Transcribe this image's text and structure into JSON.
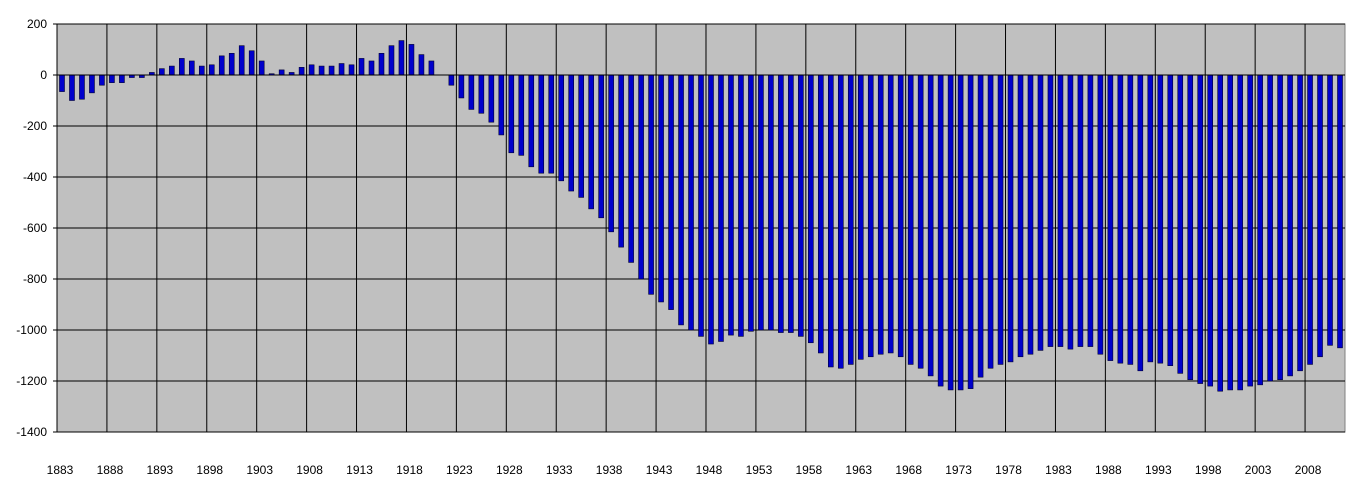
{
  "chart_data": {
    "type": "bar",
    "title": "",
    "xlabel": "",
    "ylabel": "",
    "ylim": [
      -1400,
      200
    ],
    "yticks": [
      200,
      0,
      -200,
      -400,
      -600,
      -800,
      -1000,
      -1200,
      -1400
    ],
    "x_tick_labels": [
      "1883",
      "1888",
      "1893",
      "1898",
      "1903",
      "1908",
      "1913",
      "1918",
      "1923",
      "1928",
      "1933",
      "1938",
      "1943",
      "1948",
      "1953",
      "1958",
      "1963",
      "1968",
      "1973",
      "1978",
      "1983",
      "1988",
      "1993",
      "1998",
      "2003",
      "2008"
    ],
    "grid": true,
    "legend": "none",
    "plot_background": "#c0c0c0",
    "bar_color": "#0000cc",
    "bar_edge_color": "#000033",
    "x": [
      1883,
      1884,
      1885,
      1886,
      1887,
      1888,
      1889,
      1890,
      1891,
      1892,
      1893,
      1894,
      1895,
      1896,
      1897,
      1898,
      1899,
      1900,
      1901,
      1902,
      1903,
      1904,
      1905,
      1906,
      1907,
      1908,
      1909,
      1910,
      1911,
      1912,
      1913,
      1914,
      1915,
      1916,
      1917,
      1918,
      1919,
      1920,
      1921,
      1922,
      1923,
      1924,
      1925,
      1926,
      1927,
      1928,
      1929,
      1930,
      1931,
      1932,
      1933,
      1934,
      1935,
      1936,
      1937,
      1938,
      1939,
      1940,
      1941,
      1942,
      1943,
      1944,
      1945,
      1946,
      1947,
      1948,
      1949,
      1950,
      1951,
      1952,
      1953,
      1954,
      1955,
      1956,
      1957,
      1958,
      1959,
      1960,
      1961,
      1962,
      1963,
      1964,
      1965,
      1966,
      1967,
      1968,
      1969,
      1970,
      1971,
      1972,
      1973,
      1974,
      1975,
      1976,
      1977,
      1978,
      1979,
      1980,
      1981,
      1982,
      1983,
      1984,
      1985,
      1986,
      1987,
      1988,
      1989,
      1990,
      1991,
      1992,
      1993,
      1994,
      1995,
      1996,
      1997,
      1998,
      1999,
      2000,
      2001,
      2002,
      2003,
      2004,
      2005,
      2006,
      2007,
      2008,
      2009,
      2010,
      2011
    ],
    "values": [
      -65,
      -100,
      -95,
      -70,
      -40,
      -30,
      -30,
      -10,
      -10,
      10,
      25,
      35,
      65,
      55,
      35,
      40,
      75,
      85,
      115,
      95,
      55,
      5,
      20,
      10,
      30,
      40,
      35,
      35,
      45,
      40,
      65,
      55,
      85,
      115,
      135,
      120,
      80,
      55,
      null,
      -40,
      -90,
      -135,
      -150,
      -185,
      -235,
      -305,
      -315,
      -360,
      -385,
      -385,
      -415,
      -455,
      -480,
      -525,
      -560,
      -615,
      -675,
      -735,
      -800,
      -860,
      -890,
      -920,
      -980,
      -1000,
      -1025,
      -1055,
      -1045,
      -1020,
      -1025,
      -1005,
      -1000,
      -1000,
      -1010,
      -1010,
      -1025,
      -1050,
      -1090,
      -1145,
      -1150,
      -1135,
      -1115,
      -1105,
      -1095,
      -1090,
      -1105,
      -1135,
      -1150,
      -1180,
      -1220,
      -1235,
      -1235,
      -1230,
      -1185,
      -1150,
      -1135,
      -1125,
      -1105,
      -1095,
      -1080,
      -1065,
      -1065,
      -1075,
      -1065,
      -1065,
      -1095,
      -1120,
      -1130,
      -1135,
      -1160,
      -1125,
      -1130,
      -1140,
      -1170,
      -1195,
      -1210,
      -1220,
      -1240,
      -1235,
      -1235,
      -1220,
      -1215,
      -1200,
      -1195,
      -1180,
      -1160,
      -1135,
      -1105,
      -1060,
      -1070
    ]
  }
}
